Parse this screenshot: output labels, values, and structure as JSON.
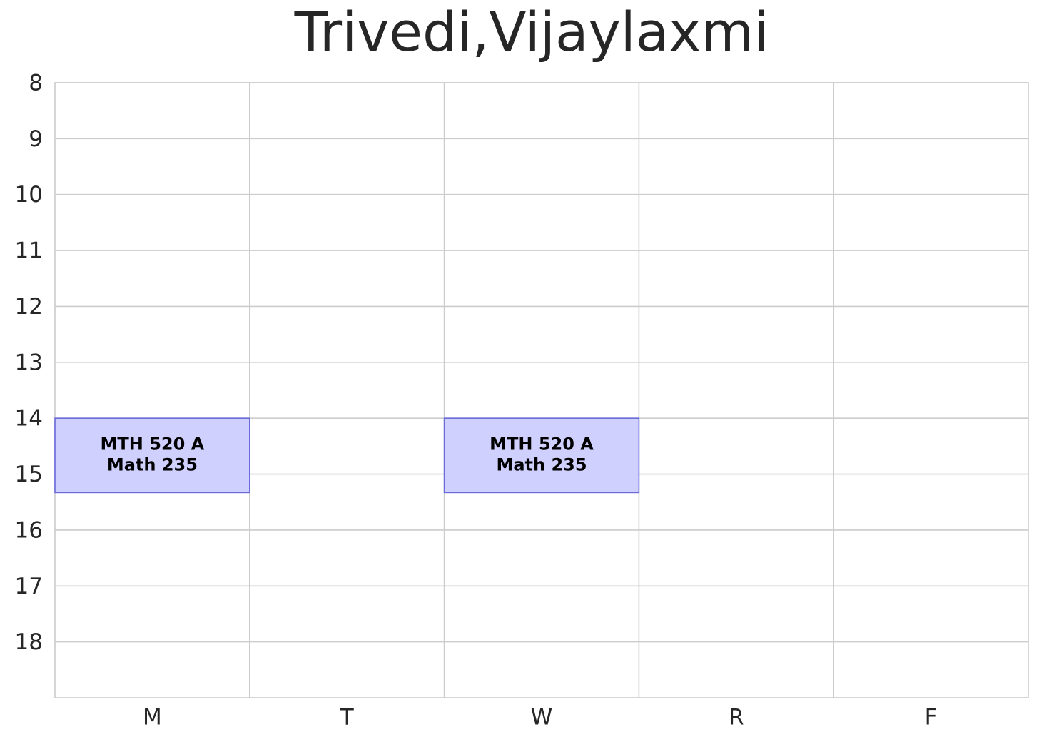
{
  "chart_data": {
    "type": "schedule",
    "title": "Trivedi,Vijaylaxmi",
    "categories": [
      "M",
      "T",
      "W",
      "R",
      "F"
    ],
    "ylim": [
      8,
      19
    ],
    "y_inverted": true,
    "yticks": [
      8,
      9,
      10,
      11,
      12,
      13,
      14,
      15,
      16,
      17,
      18
    ],
    "grid": true,
    "color": "#d0d0ff",
    "edge_color": "#6a6ad8",
    "events": [
      {
        "day": "M",
        "start": 14,
        "end": 15.33,
        "course": "MTH 520 A",
        "room": "Math 235"
      },
      {
        "day": "W",
        "start": 14,
        "end": 15.33,
        "course": "MTH 520 A",
        "room": "Math 235"
      }
    ]
  }
}
